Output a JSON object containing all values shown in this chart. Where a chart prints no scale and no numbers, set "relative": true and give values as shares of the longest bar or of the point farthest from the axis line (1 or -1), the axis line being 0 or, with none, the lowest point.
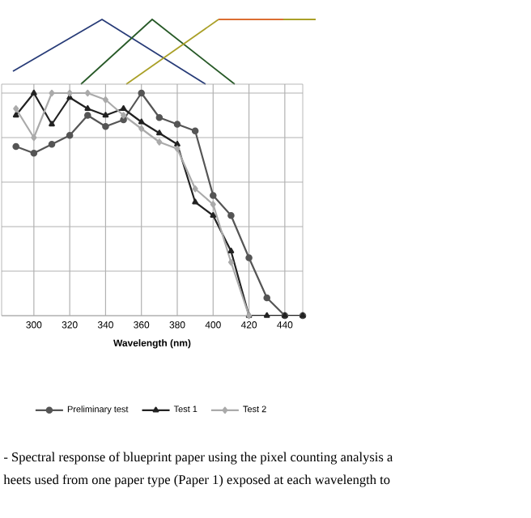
{
  "chart_data": {
    "type": "line",
    "relative": true,
    "xlabel": "Wavelength (nm)",
    "xlim": [
      282,
      450
    ],
    "xticks": [
      300,
      320,
      340,
      360,
      380,
      400,
      420,
      440
    ],
    "grid": true,
    "legend": "bottom",
    "line_style": "solid",
    "x": [
      290,
      300,
      310,
      320,
      330,
      340,
      350,
      360,
      370,
      380,
      390,
      400,
      410,
      420,
      430,
      440,
      450
    ],
    "series": [
      {
        "name": "Preliminary test",
        "color": "#555555",
        "marker": "circle",
        "values": [
          0.76,
          0.73,
          0.77,
          0.81,
          0.9,
          0.85,
          0.88,
          1.0,
          0.89,
          0.86,
          0.83,
          0.54,
          0.45,
          0.26,
          0.08,
          0,
          0
        ]
      },
      {
        "name": "Test 1",
        "color": "#222222",
        "marker": "triangle",
        "values": [
          0.9,
          1.0,
          0.86,
          0.98,
          0.93,
          0.9,
          0.93,
          0.87,
          0.82,
          0.77,
          0.51,
          0.45,
          0.29,
          0,
          0,
          0,
          0
        ]
      },
      {
        "name": "Test 2",
        "color": "#aaaaaa",
        "marker": "diamond",
        "values": [
          0.93,
          0.8,
          1.0,
          1.0,
          1.0,
          0.97,
          0.9,
          0.84,
          0.78,
          0.75,
          0.57,
          0.5,
          0.24,
          0,
          null,
          null,
          null
        ]
      }
    ],
    "annotations": [
      "- Spectral response of blueprint paper using the pixel counting analysis a",
      "heets used from one paper type (Paper 1) exposed at each wavelength to"
    ]
  }
}
